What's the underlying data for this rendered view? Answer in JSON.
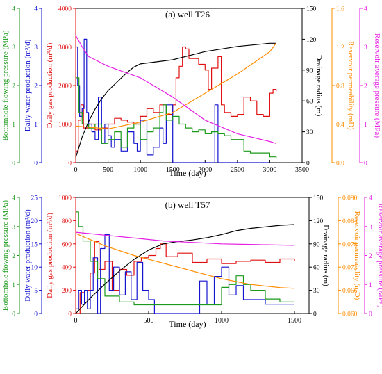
{
  "colors": {
    "green": "#1a9a1a",
    "blue": "#1515d0",
    "red": "#e01010",
    "black": "#000000",
    "orange": "#ff8c00",
    "magenta": "#e61ee6"
  },
  "chart_data": [
    {
      "type": "line",
      "title": "(a) well T26",
      "xlabel": "Time (day)",
      "xlim": [
        0,
        3500
      ],
      "xticks": [
        0,
        500,
        1000,
        1500,
        2000,
        2500,
        3000,
        3500
      ],
      "axes": {
        "bhp": {
          "label": "Bottomhole flowing pressure (MPa)",
          "lim": [
            0,
            4
          ],
          "ticks": [
            0,
            1,
            2,
            3,
            4
          ],
          "side": "left-outer"
        },
        "water": {
          "label": "Daily water production (m³/d)",
          "lim": [
            0,
            4
          ],
          "ticks": [
            0,
            1,
            2,
            3,
            4
          ],
          "side": "left-middle"
        },
        "gas": {
          "label": "Daily gas production (m³/d)",
          "lim": [
            0,
            4000
          ],
          "ticks": [
            0,
            1000,
            2000,
            3000,
            4000
          ],
          "side": "left-inner"
        },
        "drain": {
          "label": "Drainage radius (m)",
          "lim": [
            0,
            150
          ],
          "ticks": [
            0,
            30,
            60,
            90,
            120,
            150
          ],
          "side": "right-inner"
        },
        "perm": {
          "label": "Reservoir permeability (mD)",
          "lim": [
            0,
            1.6
          ],
          "ticks": [
            "0.0",
            "0.4",
            "0.8",
            "1.2",
            "1.6"
          ],
          "side": "right-middle"
        },
        "pres": {
          "label": "Reservoir average pressure (MPa)",
          "lim": [
            0,
            4
          ],
          "ticks": [
            0,
            1,
            2,
            3,
            4
          ],
          "side": "right-outer"
        }
      },
      "series": [
        {
          "axis": "gas",
          "color": "red",
          "x": [
            0,
            40,
            80,
            120,
            200,
            300,
            400,
            500,
            600,
            700,
            800,
            900,
            1000,
            1100,
            1200,
            1300,
            1400,
            1500,
            1550,
            1600,
            1650,
            1700,
            1750,
            1800,
            1900,
            2000,
            2050,
            2100,
            2200,
            2250,
            2300,
            2400,
            2500,
            2600,
            2700,
            2800,
            2900,
            3000,
            3050,
            3100
          ],
          "values": [
            300,
            1100,
            1500,
            900,
            1000,
            850,
            900,
            1000,
            1150,
            1100,
            1050,
            1000,
            1200,
            1400,
            1300,
            1500,
            1250,
            1500,
            2200,
            2500,
            3000,
            2950,
            2700,
            2700,
            2550,
            2400,
            1900,
            2450,
            2750,
            1500,
            1300,
            1200,
            1250,
            1700,
            1600,
            1250,
            1200,
            1800,
            1900,
            1850
          ]
        },
        {
          "axis": "water",
          "color": "blue",
          "x": [
            0,
            30,
            60,
            100,
            130,
            170,
            200,
            250,
            300,
            350,
            400,
            450,
            500,
            550,
            600,
            700,
            800,
            900,
            950,
            1000,
            1100,
            1200,
            1300,
            1350,
            1400,
            1500,
            2000,
            2150,
            2200,
            2500,
            2700,
            3000
          ],
          "values": [
            3.0,
            2.0,
            1.2,
            1.4,
            3.2,
            1.3,
            1.0,
            0.8,
            0.6,
            1.7,
            0.5,
            1.0,
            0.7,
            0.4,
            0.6,
            0.3,
            0.8,
            0.5,
            0.3,
            1.1,
            0.2,
            0.4,
            0.9,
            0.5,
            1.5,
            0.0,
            0.0,
            1.5,
            0.0,
            0.0,
            0.0,
            0.0
          ]
        },
        {
          "axis": "bhp",
          "color": "green",
          "x": [
            0,
            50,
            100,
            200,
            300,
            400,
            500,
            600,
            700,
            800,
            900,
            1000,
            1100,
            1200,
            1300,
            1350,
            1400,
            1500,
            1600,
            1700,
            1800,
            1900,
            2000,
            2100,
            2200,
            2300,
            2400,
            2500,
            2600,
            2700,
            2800,
            2900,
            3000,
            3100
          ],
          "values": [
            2.2,
            1.3,
            1.0,
            0.9,
            1.0,
            0.5,
            0.6,
            0.8,
            0.4,
            0.9,
            1.0,
            0.6,
            0.8,
            0.9,
            1.3,
            1.5,
            1.1,
            1.2,
            1.0,
            0.9,
            0.8,
            0.85,
            0.75,
            0.8,
            0.75,
            0.7,
            0.6,
            0.6,
            0.3,
            0.25,
            0.25,
            0.25,
            0.15,
            0.1
          ]
        },
        {
          "axis": "drain",
          "color": "black",
          "x": [
            0,
            50,
            100,
            200,
            300,
            400,
            500,
            600,
            700,
            800,
            900,
            1000,
            1500,
            2000,
            2500,
            3000,
            3100
          ],
          "values": [
            5,
            15,
            25,
            40,
            52,
            62,
            70,
            76,
            82,
            88,
            93,
            96,
            100,
            108,
            113,
            116,
            116
          ]
        },
        {
          "axis": "perm",
          "color": "orange",
          "x": [
            0,
            500,
            1000,
            1500,
            2000,
            2500,
            3000,
            3100
          ],
          "values": [
            0.38,
            0.35,
            0.42,
            0.52,
            0.72,
            0.92,
            1.15,
            1.24
          ]
        },
        {
          "axis": "pres",
          "color": "magenta",
          "x": [
            0,
            100,
            200,
            500,
            1000,
            1500,
            2000,
            2500,
            3000,
            3100
          ],
          "values": [
            3.3,
            3.0,
            2.75,
            2.5,
            2.2,
            1.7,
            1.1,
            0.75,
            0.55,
            0.5
          ]
        }
      ]
    },
    {
      "type": "line",
      "title": "(b) well T57",
      "xlabel": "Time (day)",
      "xlim": [
        0,
        1600
      ],
      "xticks": [
        0,
        500,
        1000,
        1500
      ],
      "axes": {
        "bhp": {
          "label": "Bottomhole flowing pressure (MPa)",
          "lim": [
            0,
            4
          ],
          "ticks": [
            0,
            1,
            2,
            3,
            4
          ],
          "side": "left-outer"
        },
        "water": {
          "label": "Daily water production (m³/d)",
          "lim": [
            0,
            25
          ],
          "ticks": [
            0,
            5,
            10,
            15,
            20,
            25
          ],
          "side": "left-middle"
        },
        "gas": {
          "label": "Daily gas production (m³/d)",
          "lim": [
            0,
            1000
          ],
          "ticks": [
            0,
            200,
            400,
            600,
            800,
            1000
          ],
          "side": "left-inner"
        },
        "drain": {
          "label": "Drainage radius (m)",
          "lim": [
            0,
            150
          ],
          "ticks": [
            0,
            30,
            60,
            90,
            120,
            150
          ],
          "side": "right-inner"
        },
        "perm": {
          "label": "Reservoir permeability (mD)",
          "lim": [
            0.06,
            0.09
          ],
          "ticks": [
            "0.060",
            "0.066",
            "0.072",
            "0.078",
            "0.084",
            "0.090"
          ],
          "side": "right-middle"
        },
        "pres": {
          "label": "Reservoir average pressure (MPa)",
          "lim": [
            0,
            4
          ],
          "ticks": [
            0,
            1,
            2,
            3,
            4
          ],
          "side": "right-outer"
        }
      },
      "series": [
        {
          "axis": "gas",
          "color": "red",
          "x": [
            0,
            30,
            60,
            100,
            130,
            160,
            200,
            250,
            300,
            350,
            400,
            450,
            500,
            550,
            580,
            620,
            700,
            800,
            900,
            1000,
            1100,
            1200,
            1300,
            1400,
            1500
          ],
          "values": [
            0,
            180,
            200,
            350,
            620,
            380,
            450,
            200,
            380,
            330,
            450,
            480,
            500,
            560,
            600,
            490,
            520,
            440,
            470,
            430,
            450,
            460,
            440,
            470,
            450
          ]
        },
        {
          "axis": "water",
          "color": "blue",
          "x": [
            0,
            20,
            40,
            60,
            80,
            100,
            120,
            150,
            170,
            200,
            230,
            260,
            300,
            340,
            380,
            420,
            460,
            500,
            540,
            580,
            600,
            800,
            850,
            900,
            950,
            1000,
            1050,
            1100,
            1150,
            1200,
            1300,
            1400,
            1500
          ],
          "values": [
            1,
            5,
            2,
            5,
            1,
            5,
            12,
            0,
            14,
            17,
            5,
            10,
            4,
            9,
            3,
            11,
            5,
            3,
            0,
            0,
            0,
            0,
            7,
            2,
            8,
            10,
            4,
            6,
            3,
            3,
            2,
            2,
            2
          ]
        },
        {
          "axis": "bhp",
          "color": "green",
          "x": [
            0,
            20,
            50,
            100,
            150,
            200,
            300,
            400,
            500,
            600,
            800,
            900,
            1000,
            1050,
            1100,
            1150,
            1200,
            1300,
            1400,
            1500
          ],
          "values": [
            3.5,
            3.0,
            2.5,
            1.8,
            1.2,
            0.6,
            0.4,
            0.3,
            0.3,
            0.3,
            0.3,
            0.3,
            0.9,
            1.0,
            1.3,
            1.0,
            0.8,
            0.5,
            0.4,
            0.4
          ]
        },
        {
          "axis": "drain",
          "color": "black",
          "x": [
            0,
            50,
            100,
            200,
            300,
            400,
            500,
            600,
            700,
            800,
            900,
            1000,
            1100,
            1200,
            1300,
            1400,
            1500
          ],
          "values": [
            0,
            10,
            20,
            38,
            55,
            70,
            82,
            90,
            93,
            95,
            98,
            102,
            107,
            110,
            112,
            114,
            115
          ]
        },
        {
          "axis": "perm",
          "color": "orange",
          "x": [
            0,
            200,
            400,
            600,
            800,
            1000,
            1200,
            1400,
            1500
          ],
          "values": [
            0.0807,
            0.0775,
            0.075,
            0.073,
            0.071,
            0.069,
            0.0675,
            0.0667,
            0.0665
          ]
        },
        {
          "axis": "pres",
          "color": "magenta",
          "x": [
            0,
            200,
            400,
            600,
            800,
            1000,
            1200,
            1400,
            1500
          ],
          "values": [
            2.8,
            2.7,
            2.6,
            2.5,
            2.45,
            2.4,
            2.38,
            2.36,
            2.35
          ]
        }
      ]
    }
  ]
}
